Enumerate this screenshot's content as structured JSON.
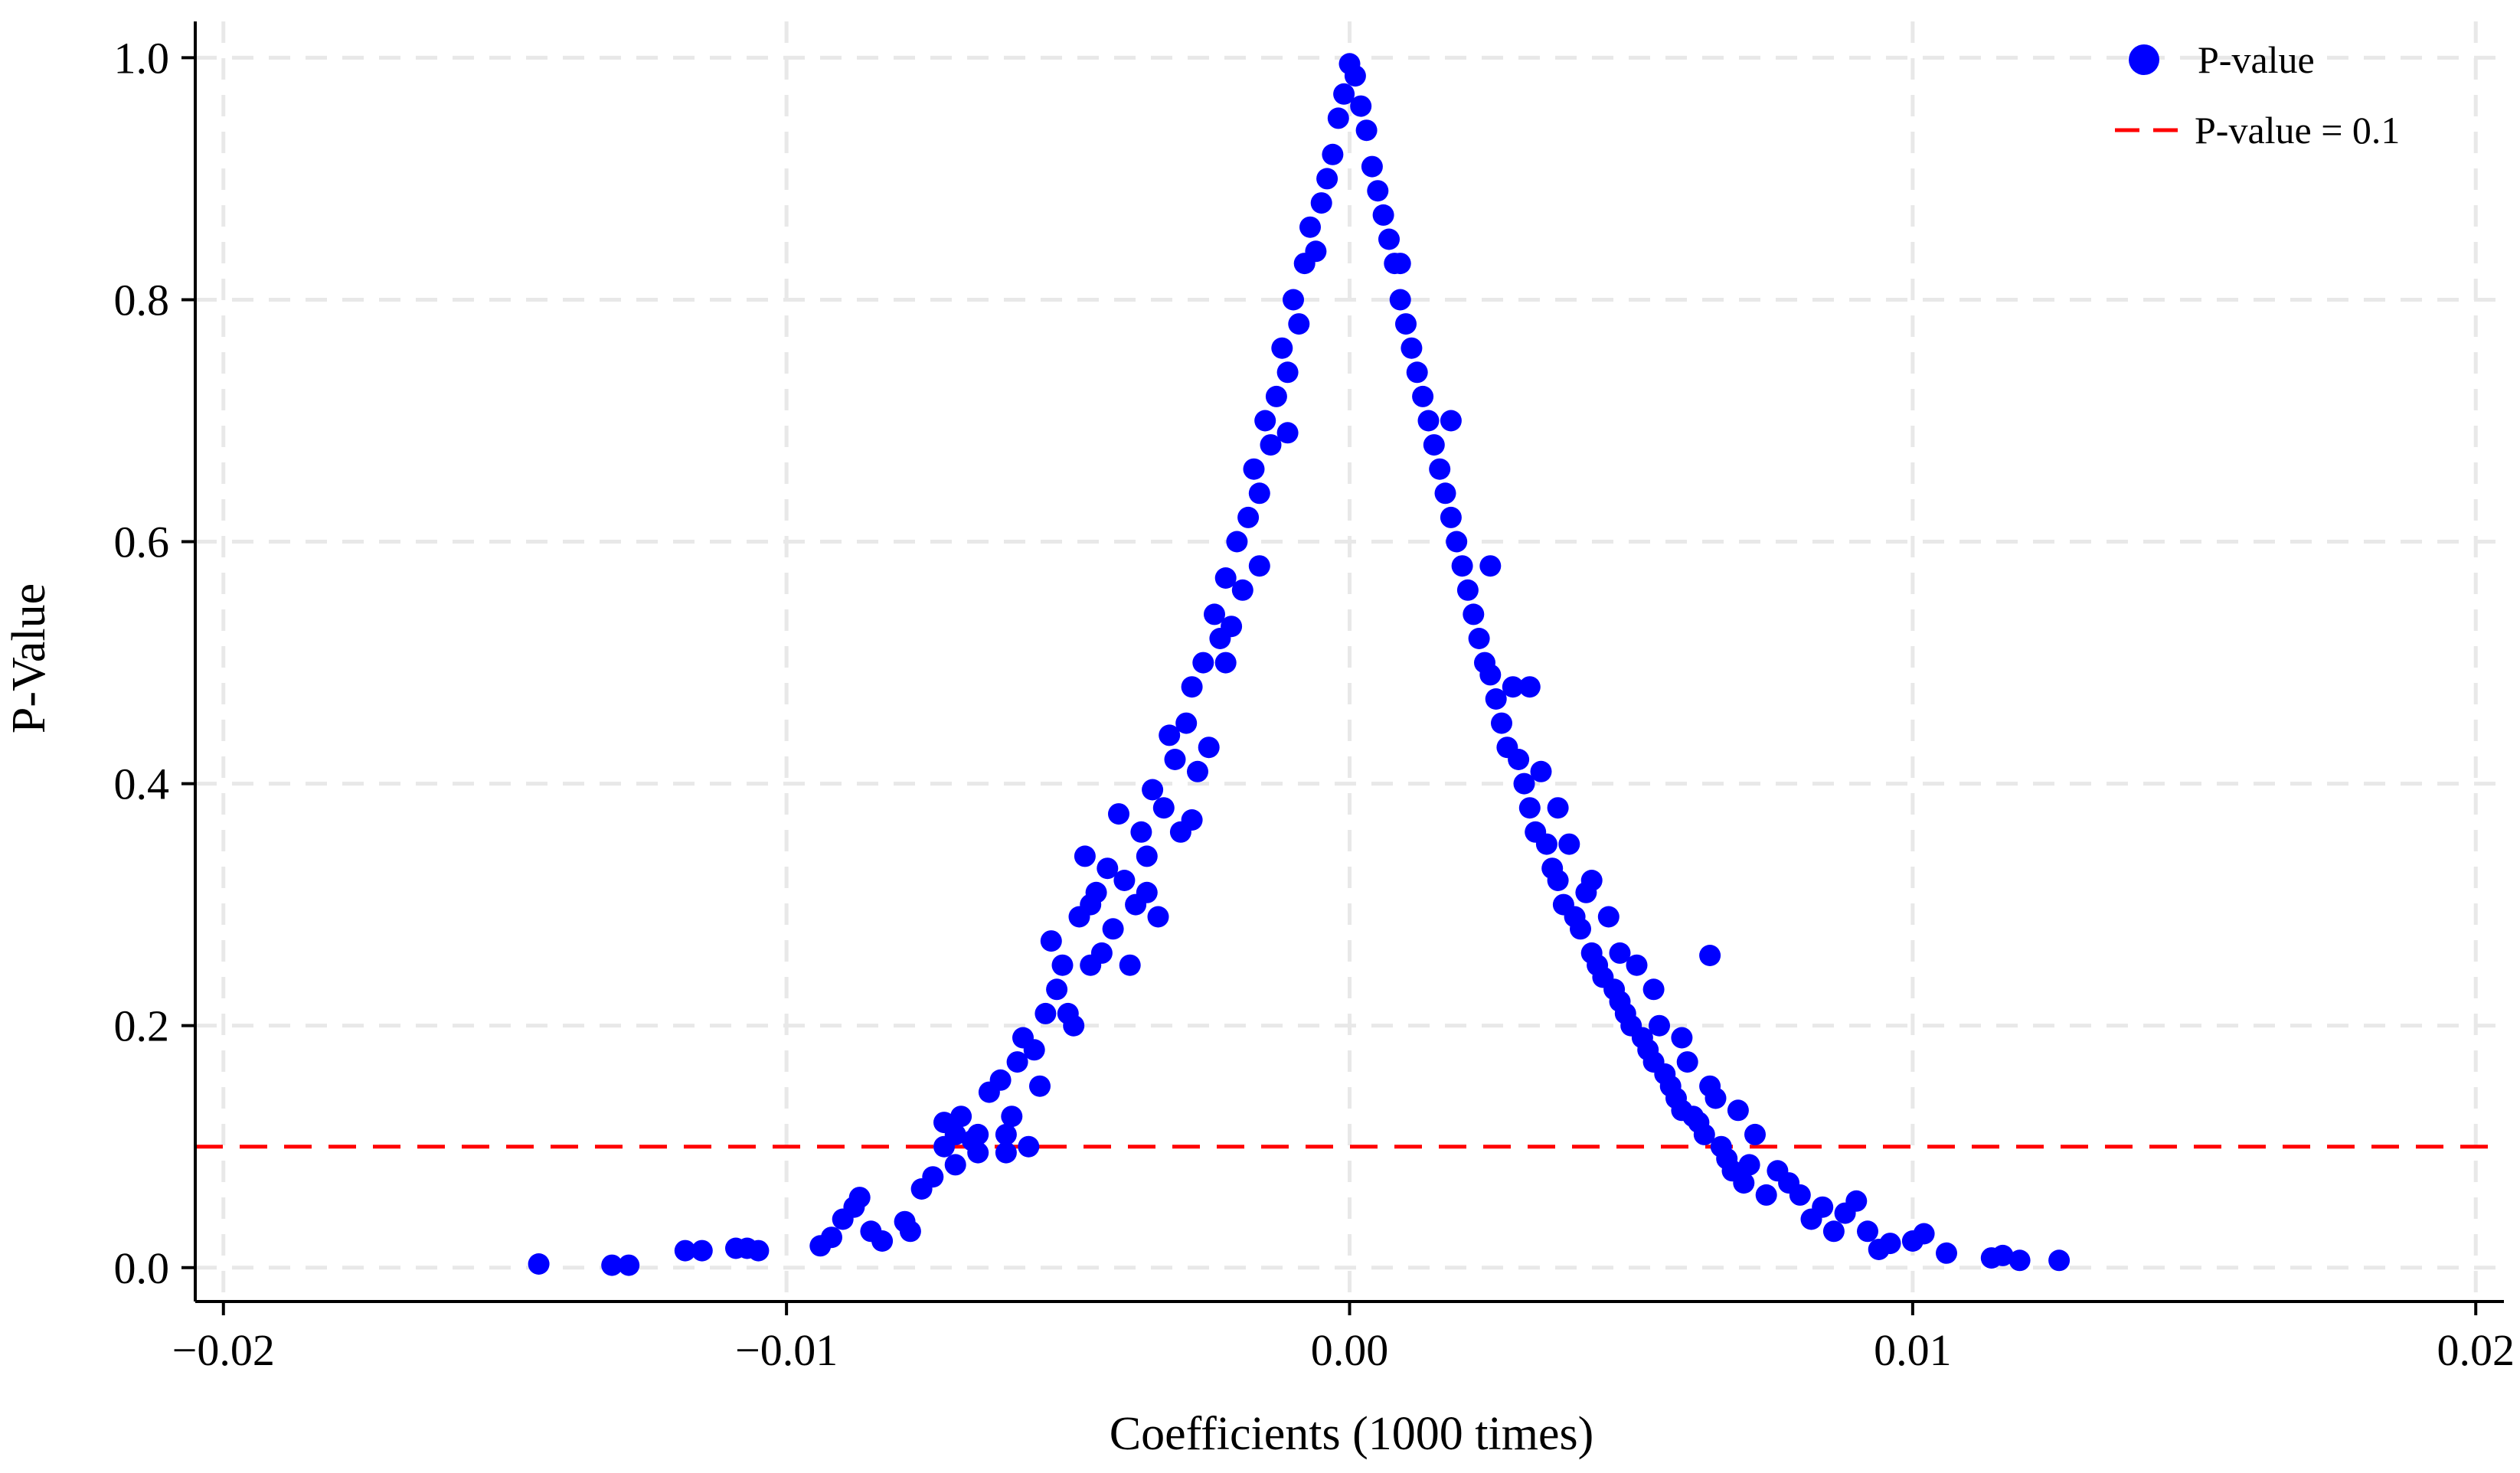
{
  "chart_data": {
    "type": "scatter",
    "title": "",
    "xlabel": "Coefficients (1000 times)",
    "ylabel": "P-Value",
    "xlim": [
      -0.0205,
      0.0205
    ],
    "ylim": [
      -0.028,
      1.03
    ],
    "x_ticks": [
      -0.02,
      -0.01,
      0.0,
      0.01,
      0.02
    ],
    "x_tick_labels": [
      "−0.02",
      "−0.01",
      "0.00",
      "0.01",
      "0.02"
    ],
    "y_ticks": [
      0.0,
      0.2,
      0.4,
      0.6,
      0.8,
      1.0
    ],
    "y_tick_labels": [
      "0.0",
      "0.2",
      "0.4",
      "0.6",
      "0.8",
      "1.0"
    ],
    "grid": true,
    "legend_position": "top-right",
    "reference_line": {
      "y": 0.1,
      "label": "P-value = 0.1",
      "color": "#ff0000",
      "style": "dashed"
    },
    "series": [
      {
        "name": "P-value",
        "color": "#0000ff",
        "marker": "circle",
        "points": [
          [
            -0.0144,
            0.003
          ],
          [
            -0.0131,
            0.002
          ],
          [
            -0.0128,
            0.002
          ],
          [
            -0.0118,
            0.014
          ],
          [
            -0.0115,
            0.014
          ],
          [
            -0.0109,
            0.016
          ],
          [
            -0.0107,
            0.016
          ],
          [
            -0.0105,
            0.014
          ],
          [
            -0.0094,
            0.018
          ],
          [
            -0.0092,
            0.025
          ],
          [
            -0.009,
            0.04
          ],
          [
            -0.0088,
            0.05
          ],
          [
            -0.0087,
            0.058
          ],
          [
            -0.0085,
            0.03
          ],
          [
            -0.0083,
            0.022
          ],
          [
            -0.0079,
            0.038
          ],
          [
            -0.0078,
            0.03
          ],
          [
            -0.0076,
            0.065
          ],
          [
            -0.0074,
            0.075
          ],
          [
            -0.0072,
            0.1
          ],
          [
            -0.0072,
            0.12
          ],
          [
            -0.007,
            0.085
          ],
          [
            -0.0069,
            0.125
          ],
          [
            -0.0067,
            0.105
          ],
          [
            -0.0066,
            0.095
          ],
          [
            -0.0064,
            0.145
          ],
          [
            -0.0062,
            0.155
          ],
          [
            -0.0061,
            0.095
          ],
          [
            -0.006,
            0.125
          ],
          [
            -0.0059,
            0.17
          ],
          [
            -0.0058,
            0.19
          ],
          [
            -0.0057,
            0.1
          ],
          [
            -0.0056,
            0.18
          ],
          [
            -0.0055,
            0.15
          ],
          [
            -0.0054,
            0.21
          ],
          [
            -0.0053,
            0.27
          ],
          [
            -0.0052,
            0.23
          ],
          [
            -0.0051,
            0.25
          ],
          [
            -0.005,
            0.21
          ],
          [
            -0.0049,
            0.2
          ],
          [
            -0.0048,
            0.29
          ],
          [
            -0.0047,
            0.34
          ],
          [
            -0.0046,
            0.25
          ],
          [
            -0.0045,
            0.31
          ],
          [
            -0.0044,
            0.26
          ],
          [
            -0.0043,
            0.33
          ],
          [
            -0.0042,
            0.28
          ],
          [
            -0.0041,
            0.375
          ],
          [
            -0.004,
            0.32
          ],
          [
            -0.0039,
            0.25
          ],
          [
            -0.0038,
            0.3
          ],
          [
            -0.0037,
            0.36
          ],
          [
            -0.0036,
            0.34
          ],
          [
            -0.0035,
            0.395
          ],
          [
            -0.0034,
            0.29
          ],
          [
            -0.0033,
            0.38
          ],
          [
            -0.0032,
            0.44
          ],
          [
            -0.0031,
            0.42
          ],
          [
            -0.003,
            0.36
          ],
          [
            -0.0029,
            0.45
          ],
          [
            -0.0028,
            0.48
          ],
          [
            -0.0027,
            0.41
          ],
          [
            -0.0026,
            0.5
          ],
          [
            -0.0025,
            0.43
          ],
          [
            -0.0024,
            0.54
          ],
          [
            -0.0023,
            0.52
          ],
          [
            -0.0022,
            0.57
          ],
          [
            -0.0021,
            0.53
          ],
          [
            -0.002,
            0.6
          ],
          [
            -0.0019,
            0.56
          ],
          [
            -0.0018,
            0.62
          ],
          [
            -0.0017,
            0.66
          ],
          [
            -0.0016,
            0.64
          ],
          [
            -0.0015,
            0.7
          ],
          [
            -0.0014,
            0.68
          ],
          [
            -0.0013,
            0.72
          ],
          [
            -0.0012,
            0.76
          ],
          [
            -0.0011,
            0.74
          ],
          [
            -0.001,
            0.8
          ],
          [
            -0.0009,
            0.78
          ],
          [
            -0.0008,
            0.83
          ],
          [
            -0.0007,
            0.86
          ],
          [
            -0.0006,
            0.84
          ],
          [
            -0.0005,
            0.88
          ],
          [
            -0.0004,
            0.9
          ],
          [
            -0.0003,
            0.92
          ],
          [
            -0.0002,
            0.95
          ],
          [
            -0.0001,
            0.97
          ],
          [
            0.0,
            0.995
          ],
          [
            0.0001,
            0.985
          ],
          [
            0.0002,
            0.96
          ],
          [
            0.0003,
            0.94
          ],
          [
            0.0004,
            0.91
          ],
          [
            0.0005,
            0.89
          ],
          [
            0.0006,
            0.87
          ],
          [
            0.0007,
            0.85
          ],
          [
            0.0008,
            0.83
          ],
          [
            0.0009,
            0.8
          ],
          [
            0.001,
            0.78
          ],
          [
            0.0011,
            0.76
          ],
          [
            0.0012,
            0.74
          ],
          [
            0.0013,
            0.72
          ],
          [
            0.0014,
            0.7
          ],
          [
            0.0015,
            0.68
          ],
          [
            0.0016,
            0.66
          ],
          [
            0.0017,
            0.64
          ],
          [
            0.0018,
            0.62
          ],
          [
            0.0019,
            0.6
          ],
          [
            0.002,
            0.58
          ],
          [
            0.0021,
            0.56
          ],
          [
            0.0022,
            0.54
          ],
          [
            0.0023,
            0.52
          ],
          [
            0.0024,
            0.5
          ],
          [
            0.0025,
            0.49
          ],
          [
            0.0026,
            0.47
          ],
          [
            0.0027,
            0.45
          ],
          [
            0.0028,
            0.43
          ],
          [
            0.0029,
            0.48
          ],
          [
            0.003,
            0.42
          ],
          [
            0.0031,
            0.4
          ],
          [
            0.0032,
            0.38
          ],
          [
            0.0033,
            0.36
          ],
          [
            0.0034,
            0.41
          ],
          [
            0.0035,
            0.35
          ],
          [
            0.0036,
            0.33
          ],
          [
            0.0037,
            0.32
          ],
          [
            0.0038,
            0.3
          ],
          [
            0.0039,
            0.35
          ],
          [
            0.004,
            0.29
          ],
          [
            0.0041,
            0.28
          ],
          [
            0.0042,
            0.31
          ],
          [
            0.0043,
            0.26
          ],
          [
            0.0044,
            0.25
          ],
          [
            0.0045,
            0.24
          ],
          [
            0.0046,
            0.29
          ],
          [
            0.0047,
            0.23
          ],
          [
            0.0048,
            0.22
          ],
          [
            0.0049,
            0.21
          ],
          [
            0.005,
            0.2
          ],
          [
            0.0051,
            0.25
          ],
          [
            0.0052,
            0.19
          ],
          [
            0.0053,
            0.18
          ],
          [
            0.0054,
            0.17
          ],
          [
            0.0055,
            0.2
          ],
          [
            0.0056,
            0.16
          ],
          [
            0.0057,
            0.15
          ],
          [
            0.0058,
            0.14
          ],
          [
            0.0059,
            0.13
          ],
          [
            0.006,
            0.17
          ],
          [
            0.0061,
            0.125
          ],
          [
            0.0062,
            0.12
          ],
          [
            0.0063,
            0.11
          ],
          [
            0.0064,
            0.258
          ],
          [
            0.0065,
            0.14
          ],
          [
            0.0066,
            0.1
          ],
          [
            0.0067,
            0.09
          ],
          [
            0.0068,
            0.08
          ],
          [
            0.0069,
            0.13
          ],
          [
            0.007,
            0.07
          ],
          [
            0.0072,
            0.11
          ],
          [
            0.0074,
            0.06
          ],
          [
            0.0076,
            0.08
          ],
          [
            0.0078,
            0.07
          ],
          [
            0.008,
            0.06
          ],
          [
            0.0082,
            0.04
          ],
          [
            0.0084,
            0.05
          ],
          [
            0.0086,
            0.03
          ],
          [
            0.0088,
            0.045
          ],
          [
            0.009,
            0.055
          ],
          [
            0.0092,
            0.03
          ],
          [
            0.0094,
            0.015
          ],
          [
            0.0096,
            0.02
          ],
          [
            0.01,
            0.022
          ],
          [
            0.0102,
            0.028
          ],
          [
            0.0106,
            0.012
          ],
          [
            0.0114,
            0.008
          ],
          [
            0.0116,
            0.01
          ],
          [
            0.0119,
            0.006
          ],
          [
            0.0126,
            0.006
          ],
          [
            -0.0061,
            0.11
          ],
          [
            -0.0066,
            0.11
          ],
          [
            -0.007,
            0.11
          ],
          [
            -0.0046,
            0.3
          ],
          [
            -0.0036,
            0.31
          ],
          [
            -0.0028,
            0.37
          ],
          [
            -0.0022,
            0.5
          ],
          [
            -0.0016,
            0.58
          ],
          [
            -0.0011,
            0.69
          ],
          [
            0.0009,
            0.83
          ],
          [
            0.0018,
            0.7
          ],
          [
            0.0025,
            0.58
          ],
          [
            0.0032,
            0.48
          ],
          [
            0.0037,
            0.38
          ],
          [
            0.0043,
            0.32
          ],
          [
            0.0048,
            0.26
          ],
          [
            0.0054,
            0.23
          ],
          [
            0.0059,
            0.19
          ],
          [
            0.0064,
            0.15
          ],
          [
            0.0071,
            0.085
          ]
        ]
      }
    ],
    "legend": [
      {
        "label": "P-value",
        "type": "marker",
        "color": "#0000ff"
      },
      {
        "label": "P-value = 0.1",
        "type": "dashed-line",
        "color": "#ff0000"
      }
    ]
  }
}
